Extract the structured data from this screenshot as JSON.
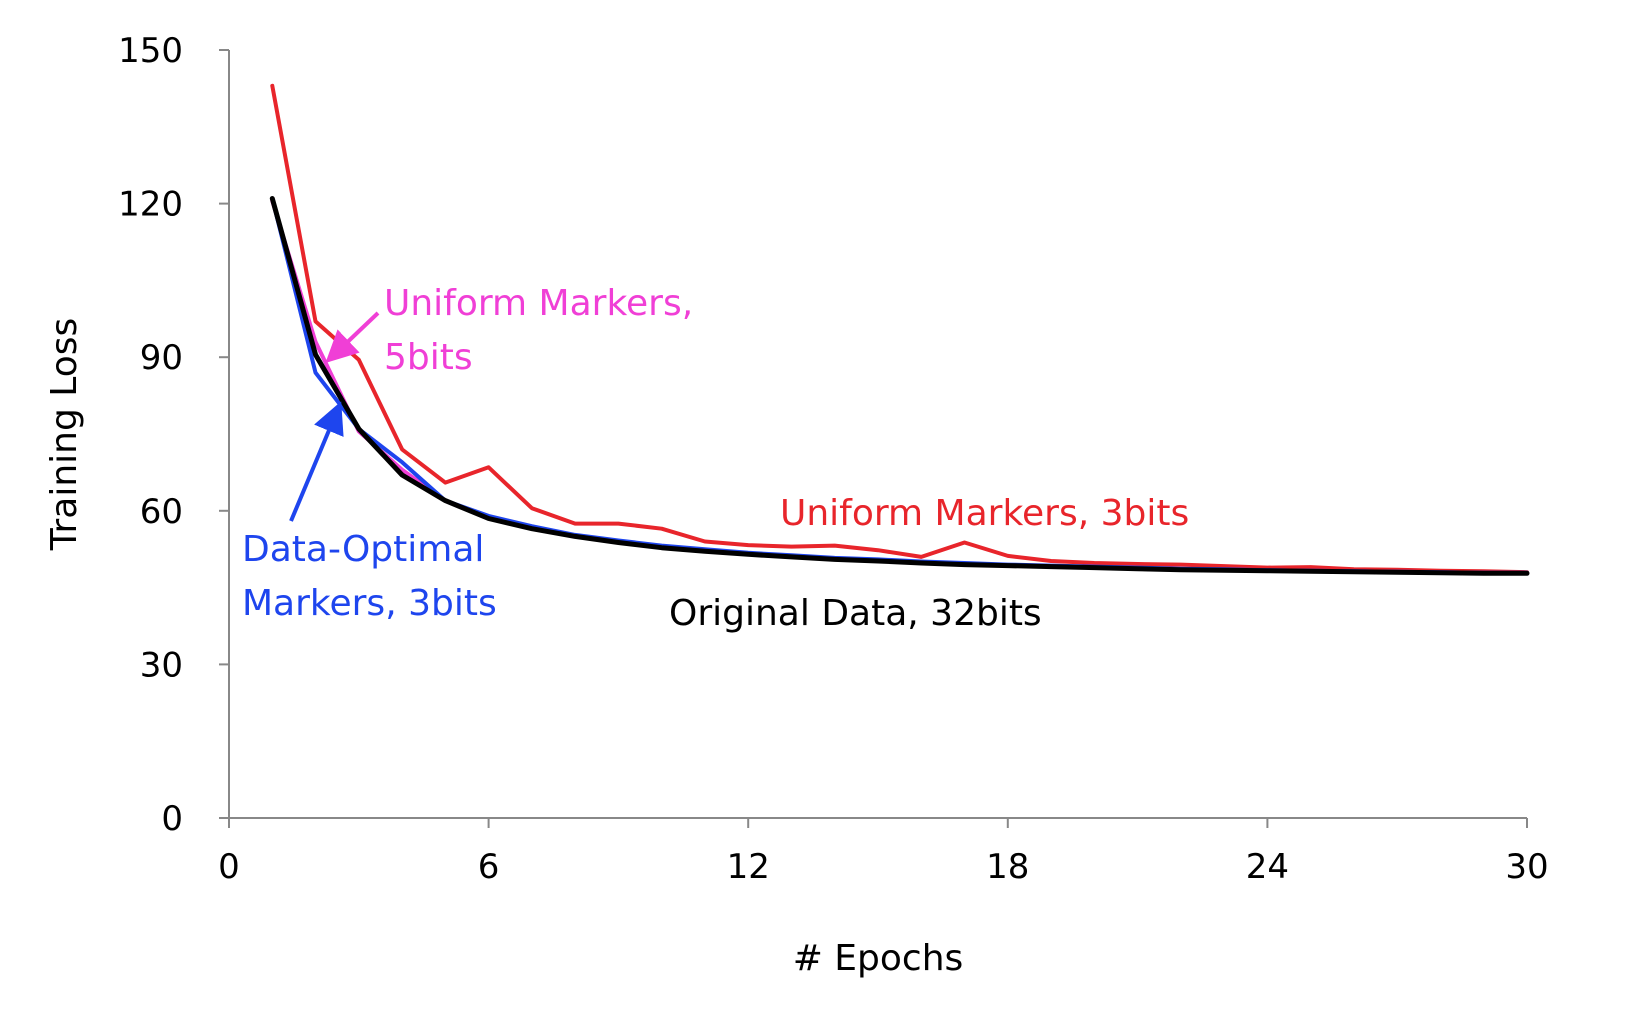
{
  "chart_data": {
    "type": "line",
    "title": "",
    "xlabel": "# Epochs",
    "ylabel": "Training Loss",
    "xlim": [
      0,
      30
    ],
    "ylim": [
      0,
      150
    ],
    "xticks": [
      0,
      6,
      12,
      18,
      24,
      30
    ],
    "yticks": [
      0,
      30,
      60,
      90,
      120,
      150
    ],
    "grid": false,
    "legend": "none",
    "x": [
      1,
      2,
      3,
      4,
      5,
      6,
      7,
      8,
      9,
      10,
      11,
      12,
      13,
      14,
      15,
      16,
      17,
      18,
      19,
      20,
      21,
      22,
      23,
      24,
      25,
      26,
      27,
      28,
      29,
      30
    ],
    "series": [
      {
        "color": "#e8252b",
        "values": [
          143,
          97,
          89.5,
          72,
          65.5,
          68.5,
          60.5,
          57.5,
          57.5,
          56.5,
          54,
          53.3,
          53,
          53.2,
          52.3,
          51,
          53.8,
          51.2,
          50.2,
          49.8,
          49.6,
          49.5,
          49.2,
          48.9,
          49,
          48.6,
          48.5,
          48.3,
          48.2,
          48
        ]
      },
      {
        "color": "#f03fd6",
        "values": [
          120.5,
          93,
          75.5,
          68,
          62,
          58.5,
          56.7,
          55,
          54,
          53,
          52.3,
          51.6,
          51.1,
          50.7,
          50.3,
          50,
          49.7,
          49.4,
          49.2,
          49,
          48.8,
          48.6,
          48.5,
          48.4,
          48.3,
          48.2,
          48.1,
          48,
          47.9,
          47.9
        ]
      },
      {
        "color": "#1e45ee",
        "values": [
          121,
          87,
          76,
          69.5,
          62,
          59,
          57,
          55.3,
          54.2,
          53.2,
          52.5,
          51.8,
          51.3,
          50.8,
          50.5,
          50.1,
          49.8,
          49.5,
          49.3,
          49.1,
          48.9,
          48.7,
          48.6,
          48.4,
          48.3,
          48.2,
          48.1,
          48,
          47.9,
          47.9
        ]
      },
      {
        "color": "#000000",
        "values": [
          121,
          90.5,
          76,
          67,
          62,
          58.5,
          56.5,
          55,
          53.8,
          52.8,
          52.1,
          51.5,
          51,
          50.5,
          50.2,
          49.8,
          49.5,
          49.3,
          49.1,
          48.9,
          48.7,
          48.5,
          48.4,
          48.3,
          48.2,
          48.1,
          48,
          47.9,
          47.8,
          47.8
        ]
      }
    ],
    "annotations": [
      {
        "lines": [
          "Uniform Markers,",
          "5bits"
        ],
        "color": "#f03fd6"
      },
      {
        "lines": [
          "Uniform Markers, 3bits"
        ],
        "color": "#e8252b"
      },
      {
        "lines": [
          "Data-Optimal",
          "Markers, 3bits"
        ],
        "color": "#1e45ee"
      },
      {
        "lines": [
          "Original Data, 32bits"
        ],
        "color": "#000000"
      }
    ]
  }
}
